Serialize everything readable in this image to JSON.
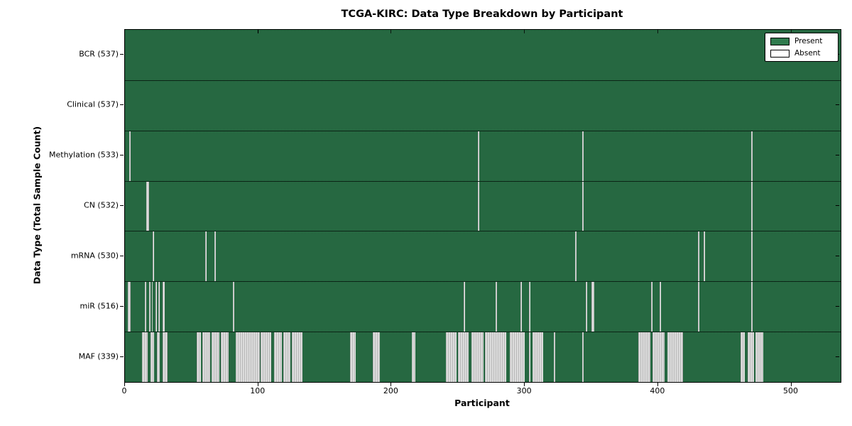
{
  "chart_data": {
    "type": "heatmap",
    "title": "TCGA-KIRC: Data Type Breakdown by Participant",
    "xlabel": "Participant",
    "ylabel": "Data Type (Total Sample Count)",
    "xlim": [
      0,
      537
    ],
    "x_ticks": [
      0,
      100,
      200,
      300,
      400,
      500
    ],
    "grid": false,
    "legend_position": "upper right",
    "legend": {
      "present": "Present",
      "absent": "Absent"
    },
    "colors": {
      "present": "#2f7a4d",
      "absent": "#dcdcdc",
      "edge": "#000000"
    },
    "rows": [
      {
        "name": "BCR",
        "label": "BCR (537)",
        "total": 537,
        "absent_ranges": []
      },
      {
        "name": "Clinical",
        "label": "Clinical (537)",
        "total": 537,
        "absent_ranges": []
      },
      {
        "name": "Methylation",
        "label": "Methylation (533)",
        "total": 533,
        "absent_ranges": [
          [
            3,
            3
          ],
          [
            265,
            265
          ],
          [
            343,
            343
          ],
          [
            470,
            470
          ]
        ]
      },
      {
        "name": "CN",
        "label": "CN (532)",
        "total": 532,
        "absent_ranges": [
          [
            16,
            17
          ],
          [
            265,
            265
          ],
          [
            343,
            343
          ],
          [
            470,
            470
          ]
        ]
      },
      {
        "name": "mRNA",
        "label": "mRNA (530)",
        "total": 530,
        "absent_ranges": [
          [
            21,
            21
          ],
          [
            60,
            60
          ],
          [
            67,
            67
          ],
          [
            338,
            338
          ],
          [
            430,
            430
          ],
          [
            434,
            434
          ],
          [
            470,
            470
          ]
        ]
      },
      {
        "name": "miR",
        "label": "miR (516)",
        "total": 516,
        "absent_ranges": [
          [
            2,
            3
          ],
          [
            15,
            15
          ],
          [
            18,
            18
          ],
          [
            20,
            20
          ],
          [
            23,
            23
          ],
          [
            25,
            25
          ],
          [
            28,
            29
          ],
          [
            81,
            81
          ],
          [
            254,
            254
          ],
          [
            278,
            278
          ],
          [
            297,
            297
          ],
          [
            303,
            303
          ],
          [
            346,
            346
          ],
          [
            350,
            351
          ],
          [
            395,
            395
          ],
          [
            401,
            401
          ],
          [
            430,
            430
          ],
          [
            470,
            470
          ]
        ]
      },
      {
        "name": "MAF",
        "label": "MAF (339)",
        "total": 339,
        "absent_ranges": [
          [
            13,
            16
          ],
          [
            19,
            21
          ],
          [
            24,
            25
          ],
          [
            28,
            31
          ],
          [
            54,
            56
          ],
          [
            58,
            63
          ],
          [
            65,
            70
          ],
          [
            72,
            77
          ],
          [
            83,
            100
          ],
          [
            102,
            109
          ],
          [
            112,
            117
          ],
          [
            119,
            123
          ],
          [
            125,
            132
          ],
          [
            169,
            172
          ],
          [
            186,
            190
          ],
          [
            215,
            217
          ],
          [
            241,
            248
          ],
          [
            250,
            257
          ],
          [
            260,
            268
          ],
          [
            270,
            285
          ],
          [
            289,
            299
          ],
          [
            303,
            303
          ],
          [
            306,
            313
          ],
          [
            322,
            322
          ],
          [
            343,
            343
          ],
          [
            385,
            393
          ],
          [
            396,
            404
          ],
          [
            407,
            418
          ],
          [
            462,
            464
          ],
          [
            467,
            471
          ],
          [
            473,
            478
          ]
        ]
      }
    ]
  }
}
